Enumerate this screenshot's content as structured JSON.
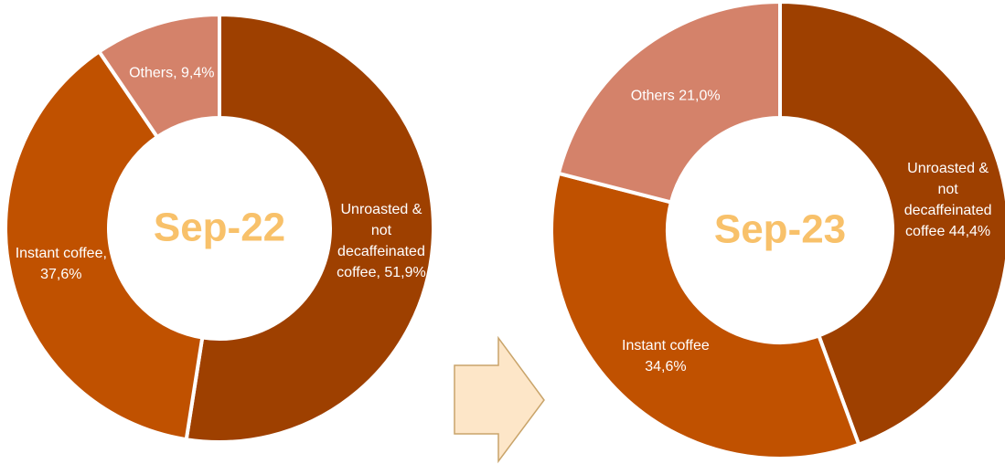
{
  "chart_data": [
    {
      "type": "donut",
      "title": "Sep-22",
      "values": [
        51.9,
        37.6,
        9.4
      ],
      "value_labels": [
        "Unroasted & not decaffeinated coffee, 51,9%",
        "Instant coffee, 37,6%",
        "Others, 9,4%"
      ],
      "colors": [
        "#9e4000",
        "#c05100",
        "#d4826a"
      ]
    },
    {
      "type": "donut",
      "title": "Sep-23",
      "values": [
        44.4,
        34.6,
        21.0
      ],
      "value_labels": [
        "Unroasted & not decaffeinated coffee 44,4%",
        "Instant coffee 34,6%",
        "Others 21,0%"
      ],
      "colors": [
        "#9e4000",
        "#c05100",
        "#d4826a"
      ]
    }
  ]
}
